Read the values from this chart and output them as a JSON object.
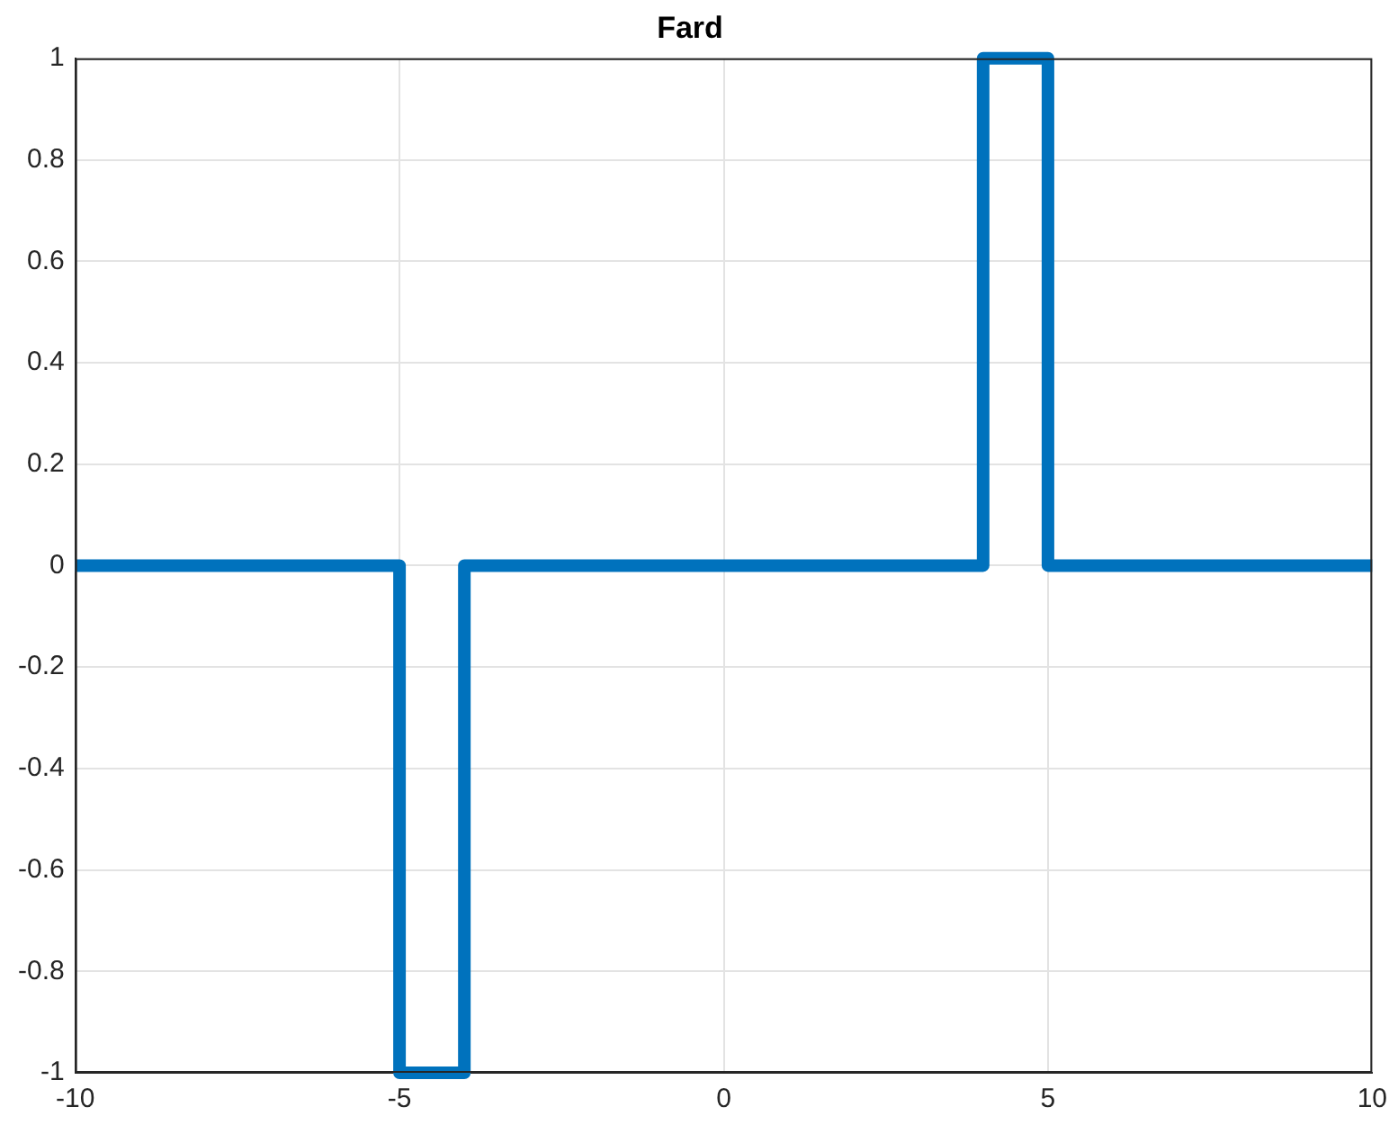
{
  "chart_data": {
    "type": "line",
    "title": "Fard",
    "series": [
      {
        "color": "#0072bd",
        "x": [
          -10,
          -5,
          -5,
          -4,
          -4,
          4,
          4,
          5,
          5,
          10
        ],
        "values": [
          0,
          0,
          -1,
          -1,
          0,
          0,
          1,
          1,
          0,
          0
        ]
      }
    ],
    "xlim": [
      -10,
      10
    ],
    "xticks": [
      -10,
      -5,
      0,
      5,
      10
    ],
    "ylim": [
      -1,
      1
    ],
    "yticks": [
      -1,
      -0.8,
      -0.6,
      -0.4,
      -0.2,
      0,
      0.2,
      0.4,
      0.6,
      0.8,
      1
    ],
    "grid": true,
    "legend": false,
    "marker": "none",
    "line_style": "solid"
  }
}
